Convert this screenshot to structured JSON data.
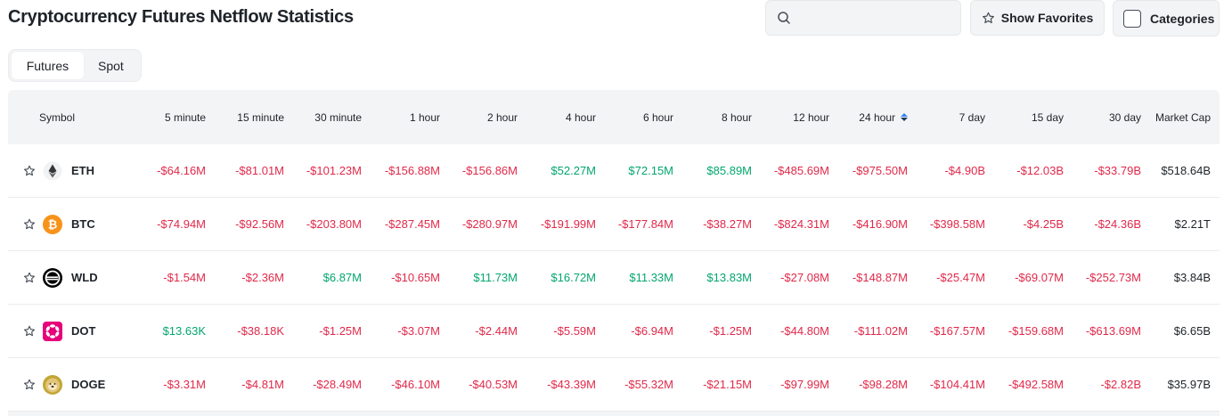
{
  "header": {
    "title": "Cryptocurrency Futures Netflow Statistics",
    "search": {
      "value": "",
      "placeholder": ""
    },
    "favorites_label": "Show Favorites",
    "categories_label": "Categories"
  },
  "tabs": [
    {
      "label": "Futures",
      "active": true
    },
    {
      "label": "Spot",
      "active": false
    }
  ],
  "colors": {
    "negative": "#e0294a",
    "positive": "#03a66d",
    "header_bg": "#f3f4f6"
  },
  "table": {
    "columns": [
      "Symbol",
      "5 minute",
      "15 minute",
      "30 minute",
      "1 hour",
      "2 hour",
      "4 hour",
      "6 hour",
      "8 hour",
      "12 hour",
      "24 hour",
      "7 day",
      "15 day",
      "30 day",
      "Market Cap"
    ],
    "sorted_column": "24 hour",
    "rows": [
      {
        "symbol": "ETH",
        "icon": "eth-icon",
        "values": [
          "-$64.16M",
          "-$81.01M",
          "-$101.23M",
          "-$156.88M",
          "-$156.86M",
          "$52.27M",
          "$72.15M",
          "$85.89M",
          "-$485.69M",
          "-$975.50M",
          "-$4.90B",
          "-$12.03B",
          "-$33.79B"
        ],
        "market_cap": "$518.64B"
      },
      {
        "symbol": "BTC",
        "icon": "btc-icon",
        "values": [
          "-$74.94M",
          "-$92.56M",
          "-$203.80M",
          "-$287.45M",
          "-$280.97M",
          "-$191.99M",
          "-$177.84M",
          "-$38.27M",
          "-$824.31M",
          "-$416.90M",
          "-$398.58M",
          "-$4.25B",
          "-$24.36B"
        ],
        "market_cap": "$2.21T"
      },
      {
        "symbol": "WLD",
        "icon": "wld-icon",
        "values": [
          "-$1.54M",
          "-$2.36M",
          "$6.87M",
          "-$10.65M",
          "$11.73M",
          "$16.72M",
          "$11.33M",
          "$13.83M",
          "-$27.08M",
          "-$148.87M",
          "-$25.47M",
          "-$69.07M",
          "-$252.73M"
        ],
        "market_cap": "$3.84B"
      },
      {
        "symbol": "DOT",
        "icon": "dot-icon",
        "values": [
          "$13.63K",
          "-$38.18K",
          "-$1.25M",
          "-$3.07M",
          "-$2.44M",
          "-$5.59M",
          "-$6.94M",
          "-$1.25M",
          "-$44.80M",
          "-$111.02M",
          "-$167.57M",
          "-$159.68M",
          "-$613.69M"
        ],
        "market_cap": "$6.65B"
      },
      {
        "symbol": "DOGE",
        "icon": "doge-icon",
        "values": [
          "-$3.31M",
          "-$4.81M",
          "-$28.49M",
          "-$46.10M",
          "-$40.53M",
          "-$43.39M",
          "-$55.32M",
          "-$21.15M",
          "-$97.99M",
          "-$98.28M",
          "-$104.41M",
          "-$492.58M",
          "-$2.82B"
        ],
        "market_cap": "$35.97B"
      }
    ]
  }
}
